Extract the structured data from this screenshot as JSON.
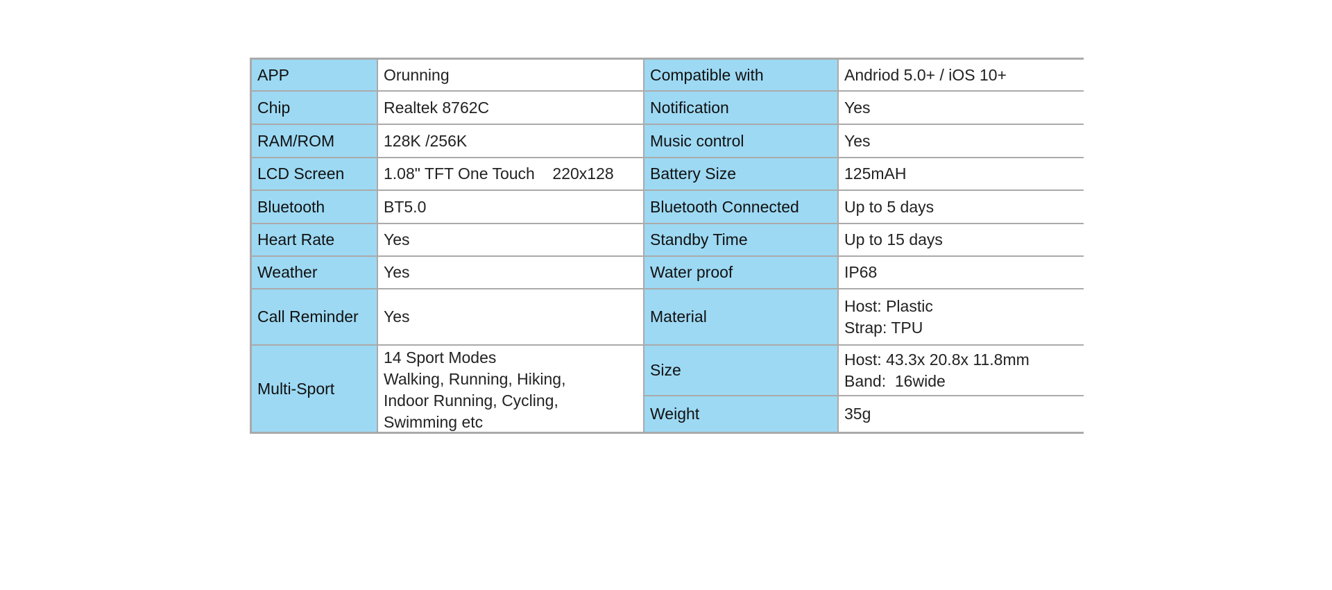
{
  "colors": {
    "label_bg": "#9dd9f3",
    "border": "#aaaaaa"
  },
  "left": [
    {
      "label": "APP",
      "value": [
        "Orunning"
      ]
    },
    {
      "label": "Chip",
      "value": [
        "Realtek 8762C"
      ]
    },
    {
      "label": "RAM/ROM",
      "value": [
        "128K /256K"
      ]
    },
    {
      "label": "LCD Screen",
      "value": [
        "1.08\" TFT One Touch    220x128"
      ]
    },
    {
      "label": "Bluetooth",
      "value": [
        "BT5.0"
      ]
    },
    {
      "label": "Heart Rate",
      "value": [
        "Yes"
      ]
    },
    {
      "label": "Weather",
      "value": [
        "Yes"
      ]
    },
    {
      "label": "Call Reminder",
      "value": [
        "Yes"
      ]
    },
    {
      "label": "Multi-Sport",
      "value": [
        "14 Sport Modes",
        "Walking, Running, Hiking,",
        "Indoor Running, Cycling,",
        "Swimming etc"
      ]
    }
  ],
  "right": [
    {
      "label": "Compatible with",
      "value": [
        "Andriod 5.0+ / iOS 10+"
      ]
    },
    {
      "label": "Notification",
      "value": [
        "Yes"
      ]
    },
    {
      "label": "Music control",
      "value": [
        "Yes"
      ]
    },
    {
      "label": "Battery Size",
      "value": [
        "125mAH"
      ]
    },
    {
      "label": "Bluetooth Connected",
      "value": [
        "Up to 5 days"
      ]
    },
    {
      "label": "Standby Time",
      "value": [
        "Up to 15 days"
      ]
    },
    {
      "label": "Water proof",
      "value": [
        "IP68"
      ]
    },
    {
      "label": "Material",
      "value": [
        "Host: Plastic",
        "Strap: TPU"
      ]
    },
    {
      "label": "Size",
      "value": [
        "Host: 43.3x 20.8x 11.8mm",
        "Band:  16wide"
      ]
    },
    {
      "label": "Weight",
      "value": [
        "35g"
      ]
    }
  ]
}
